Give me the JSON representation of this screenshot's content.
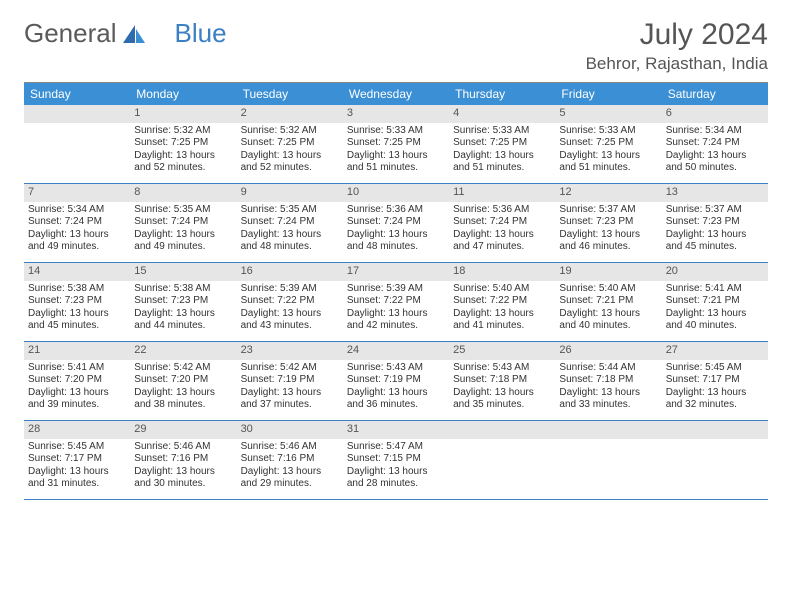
{
  "brand": {
    "part1": "General",
    "part2": "Blue"
  },
  "title": "July 2024",
  "location": "Behror, Rajasthan, India",
  "colors": {
    "header_bg": "#3b8fd4",
    "header_text": "#ffffff",
    "week_divider": "#3b7fc4",
    "daynum_bg": "#e6e6e6",
    "body_text": "#333333",
    "logo_gray": "#5a5a5a",
    "logo_blue": "#3b7fc4"
  },
  "typography": {
    "month_title_fontsize": 30,
    "location_fontsize": 17,
    "dayhead_fontsize": 12,
    "cell_fontsize": 10
  },
  "day_headers": [
    "Sunday",
    "Monday",
    "Tuesday",
    "Wednesday",
    "Thursday",
    "Friday",
    "Saturday"
  ],
  "weeks": [
    [
      {
        "n": "",
        "lines": []
      },
      {
        "n": "1",
        "lines": [
          "Sunrise: 5:32 AM",
          "Sunset: 7:25 PM",
          "Daylight: 13 hours",
          "and 52 minutes."
        ]
      },
      {
        "n": "2",
        "lines": [
          "Sunrise: 5:32 AM",
          "Sunset: 7:25 PM",
          "Daylight: 13 hours",
          "and 52 minutes."
        ]
      },
      {
        "n": "3",
        "lines": [
          "Sunrise: 5:33 AM",
          "Sunset: 7:25 PM",
          "Daylight: 13 hours",
          "and 51 minutes."
        ]
      },
      {
        "n": "4",
        "lines": [
          "Sunrise: 5:33 AM",
          "Sunset: 7:25 PM",
          "Daylight: 13 hours",
          "and 51 minutes."
        ]
      },
      {
        "n": "5",
        "lines": [
          "Sunrise: 5:33 AM",
          "Sunset: 7:25 PM",
          "Daylight: 13 hours",
          "and 51 minutes."
        ]
      },
      {
        "n": "6",
        "lines": [
          "Sunrise: 5:34 AM",
          "Sunset: 7:24 PM",
          "Daylight: 13 hours",
          "and 50 minutes."
        ]
      }
    ],
    [
      {
        "n": "7",
        "lines": [
          "Sunrise: 5:34 AM",
          "Sunset: 7:24 PM",
          "Daylight: 13 hours",
          "and 49 minutes."
        ]
      },
      {
        "n": "8",
        "lines": [
          "Sunrise: 5:35 AM",
          "Sunset: 7:24 PM",
          "Daylight: 13 hours",
          "and 49 minutes."
        ]
      },
      {
        "n": "9",
        "lines": [
          "Sunrise: 5:35 AM",
          "Sunset: 7:24 PM",
          "Daylight: 13 hours",
          "and 48 minutes."
        ]
      },
      {
        "n": "10",
        "lines": [
          "Sunrise: 5:36 AM",
          "Sunset: 7:24 PM",
          "Daylight: 13 hours",
          "and 48 minutes."
        ]
      },
      {
        "n": "11",
        "lines": [
          "Sunrise: 5:36 AM",
          "Sunset: 7:24 PM",
          "Daylight: 13 hours",
          "and 47 minutes."
        ]
      },
      {
        "n": "12",
        "lines": [
          "Sunrise: 5:37 AM",
          "Sunset: 7:23 PM",
          "Daylight: 13 hours",
          "and 46 minutes."
        ]
      },
      {
        "n": "13",
        "lines": [
          "Sunrise: 5:37 AM",
          "Sunset: 7:23 PM",
          "Daylight: 13 hours",
          "and 45 minutes."
        ]
      }
    ],
    [
      {
        "n": "14",
        "lines": [
          "Sunrise: 5:38 AM",
          "Sunset: 7:23 PM",
          "Daylight: 13 hours",
          "and 45 minutes."
        ]
      },
      {
        "n": "15",
        "lines": [
          "Sunrise: 5:38 AM",
          "Sunset: 7:23 PM",
          "Daylight: 13 hours",
          "and 44 minutes."
        ]
      },
      {
        "n": "16",
        "lines": [
          "Sunrise: 5:39 AM",
          "Sunset: 7:22 PM",
          "Daylight: 13 hours",
          "and 43 minutes."
        ]
      },
      {
        "n": "17",
        "lines": [
          "Sunrise: 5:39 AM",
          "Sunset: 7:22 PM",
          "Daylight: 13 hours",
          "and 42 minutes."
        ]
      },
      {
        "n": "18",
        "lines": [
          "Sunrise: 5:40 AM",
          "Sunset: 7:22 PM",
          "Daylight: 13 hours",
          "and 41 minutes."
        ]
      },
      {
        "n": "19",
        "lines": [
          "Sunrise: 5:40 AM",
          "Sunset: 7:21 PM",
          "Daylight: 13 hours",
          "and 40 minutes."
        ]
      },
      {
        "n": "20",
        "lines": [
          "Sunrise: 5:41 AM",
          "Sunset: 7:21 PM",
          "Daylight: 13 hours",
          "and 40 minutes."
        ]
      }
    ],
    [
      {
        "n": "21",
        "lines": [
          "Sunrise: 5:41 AM",
          "Sunset: 7:20 PM",
          "Daylight: 13 hours",
          "and 39 minutes."
        ]
      },
      {
        "n": "22",
        "lines": [
          "Sunrise: 5:42 AM",
          "Sunset: 7:20 PM",
          "Daylight: 13 hours",
          "and 38 minutes."
        ]
      },
      {
        "n": "23",
        "lines": [
          "Sunrise: 5:42 AM",
          "Sunset: 7:19 PM",
          "Daylight: 13 hours",
          "and 37 minutes."
        ]
      },
      {
        "n": "24",
        "lines": [
          "Sunrise: 5:43 AM",
          "Sunset: 7:19 PM",
          "Daylight: 13 hours",
          "and 36 minutes."
        ]
      },
      {
        "n": "25",
        "lines": [
          "Sunrise: 5:43 AM",
          "Sunset: 7:18 PM",
          "Daylight: 13 hours",
          "and 35 minutes."
        ]
      },
      {
        "n": "26",
        "lines": [
          "Sunrise: 5:44 AM",
          "Sunset: 7:18 PM",
          "Daylight: 13 hours",
          "and 33 minutes."
        ]
      },
      {
        "n": "27",
        "lines": [
          "Sunrise: 5:45 AM",
          "Sunset: 7:17 PM",
          "Daylight: 13 hours",
          "and 32 minutes."
        ]
      }
    ],
    [
      {
        "n": "28",
        "lines": [
          "Sunrise: 5:45 AM",
          "Sunset: 7:17 PM",
          "Daylight: 13 hours",
          "and 31 minutes."
        ]
      },
      {
        "n": "29",
        "lines": [
          "Sunrise: 5:46 AM",
          "Sunset: 7:16 PM",
          "Daylight: 13 hours",
          "and 30 minutes."
        ]
      },
      {
        "n": "30",
        "lines": [
          "Sunrise: 5:46 AM",
          "Sunset: 7:16 PM",
          "Daylight: 13 hours",
          "and 29 minutes."
        ]
      },
      {
        "n": "31",
        "lines": [
          "Sunrise: 5:47 AM",
          "Sunset: 7:15 PM",
          "Daylight: 13 hours",
          "and 28 minutes."
        ]
      },
      {
        "n": "",
        "lines": []
      },
      {
        "n": "",
        "lines": []
      },
      {
        "n": "",
        "lines": []
      }
    ]
  ]
}
